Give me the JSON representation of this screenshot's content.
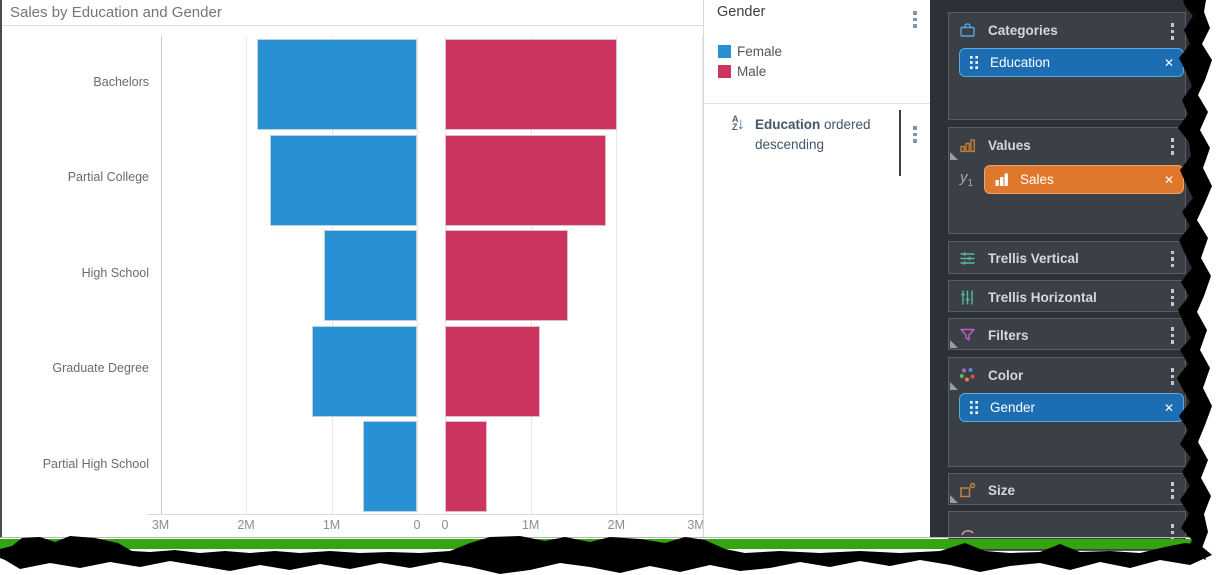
{
  "title": "Sales by Education and Gender",
  "chart_data": {
    "type": "bar",
    "orientation": "diverging-horizontal",
    "title": "Sales by Education and Gender",
    "categories": [
      "Bachelors",
      "Partial College",
      "High School",
      "Graduate Degree",
      "Partial High School"
    ],
    "series": [
      {
        "name": "Female",
        "color": "#2791D3",
        "values_M": [
          1.87,
          1.72,
          1.09,
          1.23,
          0.63
        ]
      },
      {
        "name": "Male",
        "color": "#CC3560",
        "values_M": [
          2.01,
          1.88,
          1.43,
          1.11,
          0.49
        ]
      }
    ],
    "value_unit": "M",
    "x_axis": {
      "left_ticks": [
        "3M",
        "2M",
        "1M",
        "0"
      ],
      "right_ticks": [
        "0",
        "1M",
        "2M",
        "3M"
      ],
      "max_per_side": 3
    },
    "grid": true,
    "legend_position": "right",
    "sort": "Education ordered descending"
  },
  "legend": {
    "title": "Gender",
    "items": [
      {
        "label": "Female",
        "color": "#2791D3"
      },
      {
        "label": "Male",
        "color": "#CC3560"
      }
    ]
  },
  "sort_control": {
    "field": "Education",
    "text_after_field": " ordered",
    "line2": "descending"
  },
  "panel": {
    "sections": [
      {
        "id": "categories",
        "label": "Categories",
        "icon": "categories-icon",
        "pills": [
          {
            "label": "Education",
            "style": "blue"
          }
        ]
      },
      {
        "id": "values",
        "label": "Values",
        "icon": "values-icon",
        "axis_slot": "y1",
        "pills": [
          {
            "label": "Sales",
            "style": "orange"
          }
        ]
      },
      {
        "id": "trellis-vertical",
        "label": "Trellis Vertical",
        "icon": "trellis-vertical-icon",
        "pills": []
      },
      {
        "id": "trellis-horizontal",
        "label": "Trellis Horizontal",
        "icon": "trellis-horizontal-icon",
        "pills": []
      },
      {
        "id": "filters",
        "label": "Filters",
        "icon": "filters-icon",
        "pills": []
      },
      {
        "id": "color",
        "label": "Color",
        "icon": "color-icon",
        "pills": [
          {
            "label": "Gender",
            "style": "blue"
          }
        ]
      },
      {
        "id": "size",
        "label": "Size",
        "icon": "size-icon",
        "pills": []
      },
      {
        "id": "shape-partial",
        "label": "",
        "icon": "shape-arc-icon",
        "pills": []
      }
    ]
  },
  "colors": {
    "female": "#2791D3",
    "male": "#CC3560",
    "pill_blue": "#1C6DB2",
    "pill_blue_border": "#5CA8DF",
    "pill_orange": "#DF782C",
    "pill_orange_border": "#EFA567",
    "panel_bg": "#2D3037",
    "section_bg": "#3B3F46",
    "green_strip": "#33A60F"
  }
}
